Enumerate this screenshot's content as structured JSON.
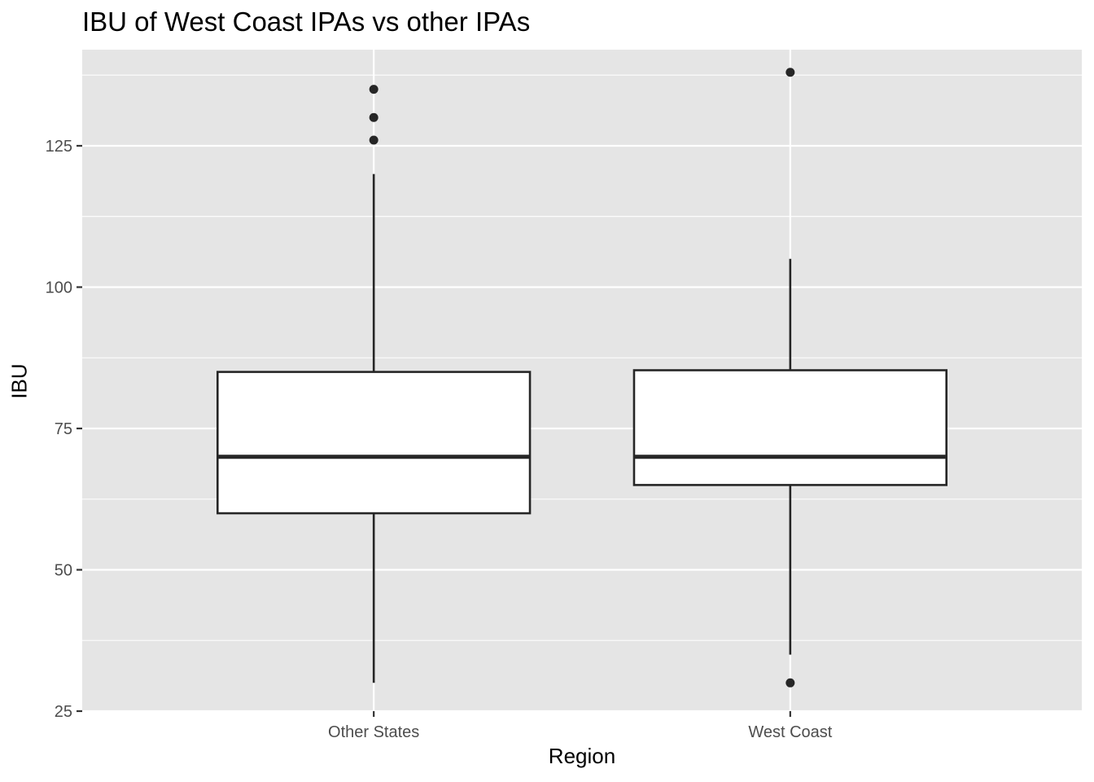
{
  "chart_data": {
    "type": "box",
    "title": "IBU of West Coast IPAs vs other IPAs",
    "xlabel": "Region",
    "ylabel": "IBU",
    "categories": [
      "Other States",
      "West Coast"
    ],
    "ylim": [
      25,
      142
    ],
    "yticks": [
      25,
      50,
      75,
      100,
      125
    ],
    "grid": true,
    "boxes": [
      {
        "category": "Other States",
        "whisker_low": 30,
        "q1": 60,
        "median": 70,
        "q3": 85,
        "whisker_high": 120,
        "outliers": [
          126,
          130,
          135
        ]
      },
      {
        "category": "West Coast",
        "whisker_low": 35,
        "q1": 65,
        "median": 70,
        "q3": 85.3,
        "whisker_high": 105,
        "outliers": [
          30,
          138
        ]
      }
    ]
  },
  "colors": {
    "panel_background": "#E5E5E5",
    "grid_line": "#FFFFFF",
    "box_fill": "#FFFFFF",
    "box_stroke": "#262626",
    "tick_text": "#4D4D4D"
  }
}
